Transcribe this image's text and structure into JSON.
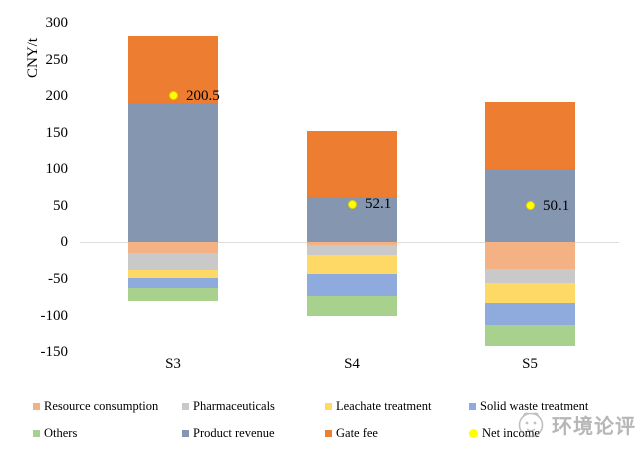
{
  "chart_data": {
    "type": "bar",
    "stacked": true,
    "title": "",
    "xlabel": "",
    "ylabel": "CNY/t",
    "ylim": [
      -150,
      300
    ],
    "ytick_step": 50,
    "yticks": [
      300,
      250,
      200,
      150,
      100,
      50,
      0,
      -50,
      -100,
      -150
    ],
    "categories": [
      "S3",
      "S4",
      "S5"
    ],
    "series": [
      {
        "name": "Resource consumption",
        "color": "#F4B183",
        "values": [
          -15,
          -4,
          -37
        ]
      },
      {
        "name": "Pharmaceuticals",
        "color": "#C9C9C9",
        "values": [
          -23,
          -13,
          -19
        ]
      },
      {
        "name": "Leachate treatment",
        "color": "#FFD966",
        "values": [
          -10,
          -26,
          -27
        ]
      },
      {
        "name": "Solid waste treatment",
        "color": "#8FAADC",
        "values": [
          -14,
          -30,
          -30
        ]
      },
      {
        "name": "Others",
        "color": "#A9D18E",
        "values": [
          -18,
          -28,
          -29
        ]
      },
      {
        "name": "Product revenue",
        "color": "#8496B0",
        "values": [
          191,
          62,
          100
        ]
      },
      {
        "name": "Gate fee",
        "color": "#ED7D31",
        "values": [
          91,
          91,
          92
        ]
      }
    ],
    "point_series": {
      "name": "Net income",
      "color": "#FFFF00",
      "values": [
        200.5,
        52.1,
        50.1
      ],
      "labels": [
        "200.5",
        "52.1",
        "50.1"
      ]
    },
    "grid": "zero line only",
    "legend_position": "bottom"
  },
  "legend": {
    "items": [
      {
        "label": "Resource consumption",
        "color": "#F4B183",
        "shape": "square"
      },
      {
        "label": "Pharmaceuticals",
        "color": "#C9C9C9",
        "shape": "square"
      },
      {
        "label": "Leachate treatment",
        "color": "#FFD966",
        "shape": "square"
      },
      {
        "label": "Solid waste treatment",
        "color": "#8FAADC",
        "shape": "square"
      },
      {
        "label": "Others",
        "color": "#A9D18E",
        "shape": "square"
      },
      {
        "label": "Product revenue",
        "color": "#8496B0",
        "shape": "square"
      },
      {
        "label": "Gate fee",
        "color": "#ED7D31",
        "shape": "square"
      },
      {
        "label": "Net income",
        "color": "#FFFF00",
        "shape": "circle"
      }
    ]
  },
  "watermark": {
    "text": "环境论评",
    "logo": "mascot-face-icon"
  }
}
